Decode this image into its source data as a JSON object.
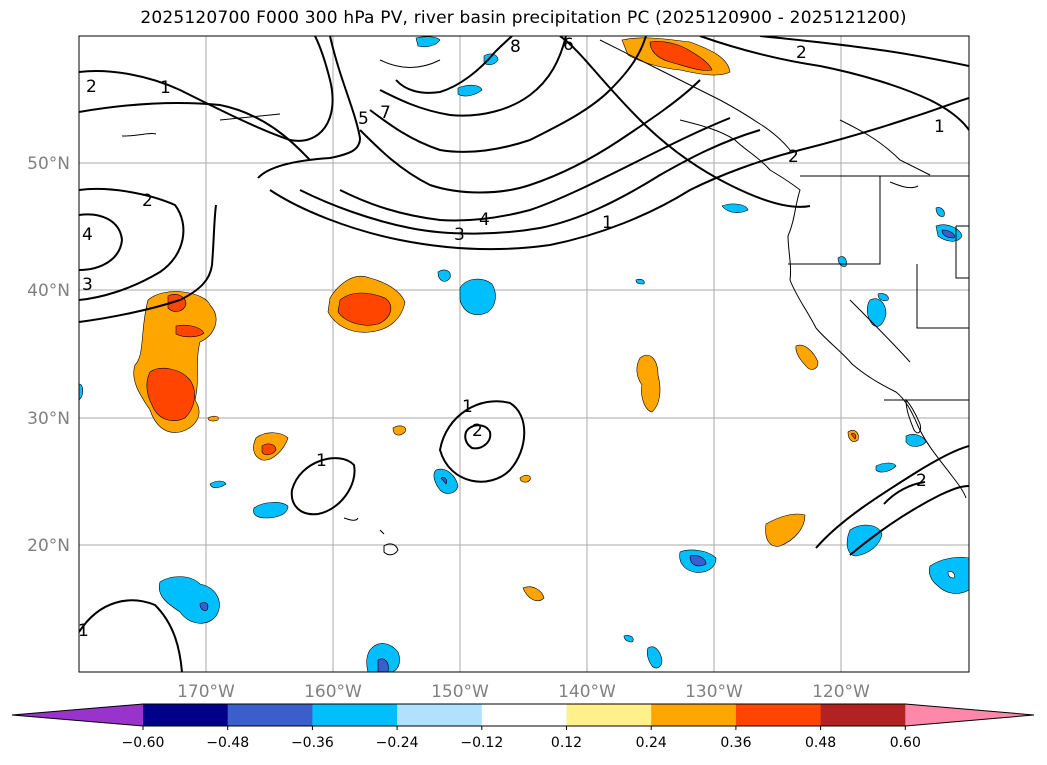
{
  "title": "2025120700 F000 300 hPa PV, river basin precipitation PC (2025120900 - 2025121200)",
  "latitude_labels": [
    "50°N",
    "40°N",
    "30°N",
    "20°N"
  ],
  "longitude_labels": [
    "170°W",
    "160°W",
    "150°W",
    "140°W",
    "130°W",
    "120°W"
  ],
  "colorbar": {
    "colors": [
      "#9933cc",
      "#00008b",
      "#3a5fcd",
      "#00bfff",
      "#b0e2ff",
      "#ffffff",
      "#fff08c",
      "#ffa500",
      "#ff4500",
      "#b22222",
      "#ff88aa"
    ],
    "ticks": [
      "−0.60",
      "−0.48",
      "−0.36",
      "−0.24",
      "−0.12",
      "0.12",
      "0.24",
      "0.36",
      "0.48",
      "0.60"
    ]
  },
  "contour_labels": [
    "2",
    "1",
    "2",
    "3",
    "4",
    "3",
    "4",
    "5",
    "7",
    "8",
    "6",
    "2",
    "1",
    "2",
    "1",
    "1",
    "2",
    "1",
    "2",
    "1"
  ],
  "colors": {
    "pv_contour": "#000000",
    "grid": "#aaaaaa",
    "coast": "#000000"
  }
}
